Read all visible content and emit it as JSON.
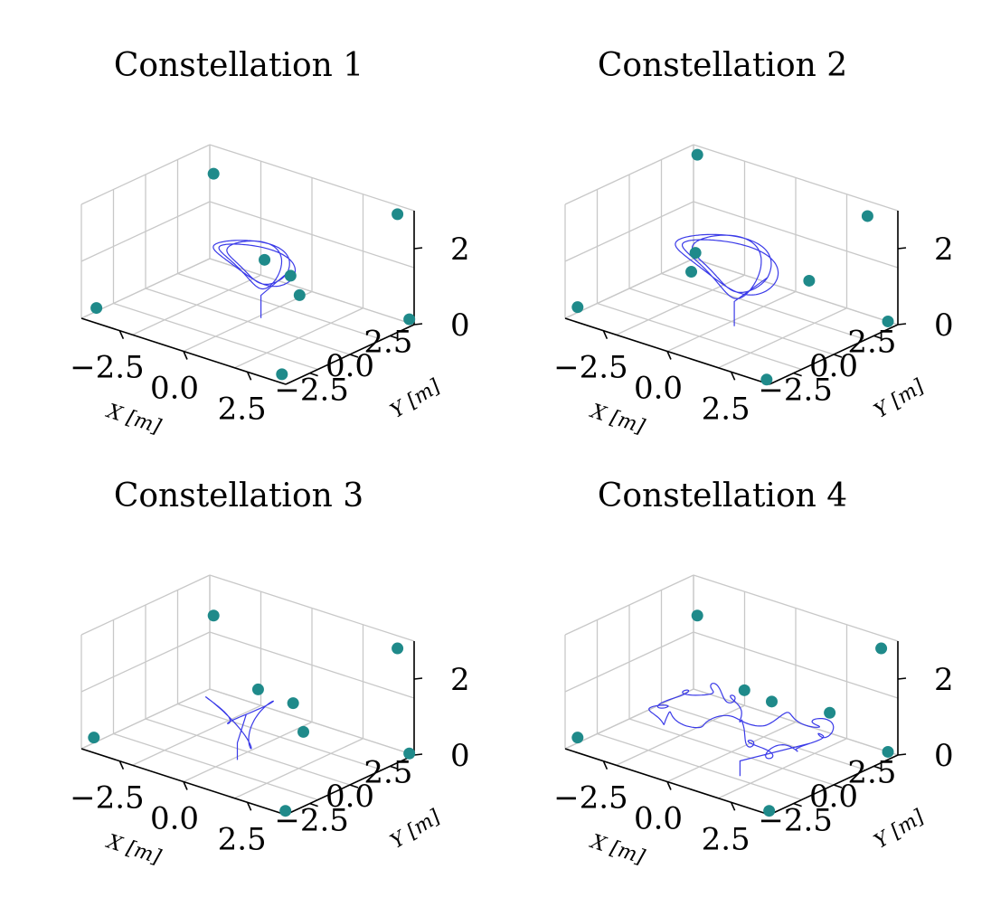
{
  "figure": {
    "accent_color": "#1f8a8a",
    "trajectory_color": "#3a3ae8"
  },
  "chart_data": [
    {
      "type": "scatter",
      "projection": "3d",
      "title": "Constellation 1",
      "xlabel": "X [m]",
      "ylabel": "Y [m]",
      "zlabel": "",
      "xticks": [
        "−2.5",
        "0.0",
        "2.5"
      ],
      "yticks": [
        "−2.5",
        "0.0",
        "2.5"
      ],
      "zticks": [
        "0",
        "2"
      ],
      "xlim": [
        -4,
        4
      ],
      "ylim": [
        -4,
        4
      ],
      "zlim": [
        0,
        3
      ],
      "grid": true,
      "anchors": [
        {
          "x": -3.6,
          "y": -3.7,
          "z": 0.3
        },
        {
          "x": 3.6,
          "y": -3.6,
          "z": 0.1
        },
        {
          "x": -3.6,
          "y": 3.6,
          "z": 2.4
        },
        {
          "x": 3.6,
          "y": 3.6,
          "z": 2.9
        },
        {
          "x": 4.0,
          "y": 3.7,
          "z": 0.2
        },
        {
          "x": 1.4,
          "y": 1.0,
          "z": 0.8
        },
        {
          "x": -0.6,
          "y": 2.0,
          "z": 1.1
        },
        {
          "x": 4.0,
          "y": -3.7,
          "z": 2.8
        }
      ],
      "trajectory": {
        "shape": "loop",
        "cx": -0.5,
        "cy": 1.2,
        "cz": 1.2,
        "rx": 1.6,
        "ry": 0.6,
        "rz": 0.6
      }
    },
    {
      "type": "scatter",
      "projection": "3d",
      "title": "Constellation 2",
      "xlabel": "X [m]",
      "ylabel": "Y [m]",
      "zlabel": "",
      "xticks": [
        "−2.5",
        "0.0",
        "2.5"
      ],
      "yticks": [
        "−2.5",
        "0.0",
        "2.5"
      ],
      "zticks": [
        "0",
        "2"
      ],
      "xlim": [
        -4,
        4
      ],
      "ylim": [
        -4,
        4
      ],
      "zlim": [
        0,
        3
      ],
      "grid": true,
      "anchors": [
        {
          "x": -3.7,
          "y": -3.7,
          "z": 0.3
        },
        {
          "x": 3.7,
          "y": -3.7,
          "z": 0.0
        },
        {
          "x": -3.6,
          "y": 3.6,
          "z": 2.9
        },
        {
          "x": 3.0,
          "y": 3.7,
          "z": 2.7
        },
        {
          "x": 3.8,
          "y": 3.7,
          "z": 0.1
        },
        {
          "x": 2.6,
          "y": 0.7,
          "z": 1.5
        },
        {
          "x": -1.6,
          "y": 0.3,
          "z": 1.4
        },
        {
          "x": -1.7,
          "y": 0.2,
          "z": 0.9
        }
      ],
      "trajectory": {
        "shape": "loop",
        "cx": -0.5,
        "cy": 0.5,
        "cz": 1.3,
        "rx": 2.0,
        "ry": 0.8,
        "rz": 0.8
      }
    },
    {
      "type": "scatter",
      "projection": "3d",
      "title": "Constellation 3",
      "xlabel": "X [m]",
      "ylabel": "Y [m]",
      "zlabel": "",
      "xticks": [
        "−2.5",
        "0.0",
        "2.5"
      ],
      "yticks": [
        "−2.5",
        "0.0",
        "2.5"
      ],
      "zticks": [
        "0",
        "2"
      ],
      "xlim": [
        -4,
        4
      ],
      "ylim": [
        -4,
        4
      ],
      "zlim": [
        0,
        3
      ],
      "grid": true,
      "anchors": [
        {
          "x": -3.7,
          "y": -3.7,
          "z": 0.3
        },
        {
          "x": 3.8,
          "y": -3.7,
          "z": 0.0
        },
        {
          "x": -3.6,
          "y": 3.6,
          "z": 2.1
        },
        {
          "x": 3.6,
          "y": 3.6,
          "z": 2.8
        },
        {
          "x": 4.0,
          "y": 3.7,
          "z": 0.1
        },
        {
          "x": 1.8,
          "y": 0.6,
          "z": 0.8
        },
        {
          "x": -0.6,
          "y": 1.6,
          "z": 1.2
        },
        {
          "x": 4.1,
          "y": -3.7,
          "z": 2.9
        }
      ],
      "trajectory": {
        "shape": "knot",
        "cx": -0.2,
        "cy": -0.2,
        "cz": 0.9,
        "rx": 0.9,
        "ry": 0.7,
        "rz": 0.7
      }
    },
    {
      "type": "scatter",
      "projection": "3d",
      "title": "Constellation 4",
      "xlabel": "X [m]",
      "ylabel": "Y [m]",
      "zlabel": "",
      "xticks": [
        "−2.5",
        "0.0",
        "2.5"
      ],
      "yticks": [
        "−2.5",
        "0.0",
        "2.5"
      ],
      "zticks": [
        "0",
        "2"
      ],
      "xlim": [
        -4,
        4
      ],
      "ylim": [
        -4,
        4
      ],
      "zlim": [
        0,
        3
      ],
      "grid": true,
      "anchors": [
        {
          "x": -3.7,
          "y": -3.7,
          "z": 0.3
        },
        {
          "x": 3.8,
          "y": -3.7,
          "z": 0.0
        },
        {
          "x": -3.6,
          "y": 3.6,
          "z": 2.1
        },
        {
          "x": 3.6,
          "y": 3.6,
          "z": 2.8
        },
        {
          "x": 3.8,
          "y": 3.7,
          "z": 0.1
        },
        {
          "x": -0.5,
          "y": 1.6,
          "z": 1.2
        },
        {
          "x": 2.4,
          "y": 2.3,
          "z": 1.1
        },
        {
          "x": 3.9,
          "y": -3.7,
          "z": 2.9
        }
      ],
      "trajectory": {
        "shape": "wide",
        "cx": 0.2,
        "cy": 0.3,
        "cz": 0.8,
        "rx": 3.0,
        "ry": 2.0,
        "rz": 0.3
      }
    }
  ]
}
